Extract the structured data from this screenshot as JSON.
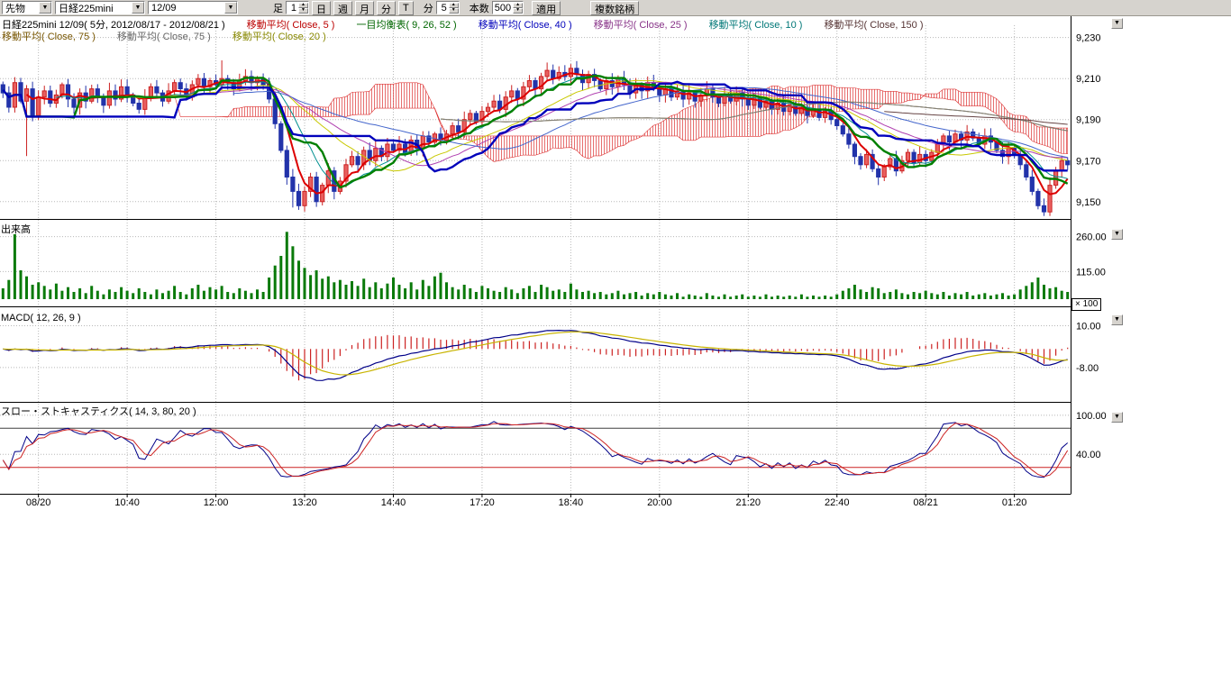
{
  "toolbar": {
    "instrument_type": "先物",
    "instrument": "日経225mini",
    "contract_month": "12/09",
    "bar_label": "足",
    "bar_value": "1",
    "period_buttons": [
      "日",
      "週",
      "月",
      "分",
      "T"
    ],
    "minute_label": "分",
    "minute_value": "5",
    "count_label": "本数",
    "count_value": "500",
    "apply_label": "適用",
    "multi_symbol_label": "複数銘柄"
  },
  "legend": {
    "row1": [
      {
        "text": "日経225mini 12/09( 5分, 2012/08/17 - 2012/08/21 )",
        "color": "#000000"
      },
      {
        "text": "移動平均( Close, 5 )",
        "color": "#bb0000"
      },
      {
        "text": "一目均衡表( 9, 26, 52 )",
        "color": "#006600"
      },
      {
        "text": "移動平均( Close, 40 )",
        "color": "#0000bb"
      },
      {
        "text": "移動平均( Close, 25 )",
        "color": "#883388"
      },
      {
        "text": "移動平均( Close, 10 )",
        "color": "#007777"
      },
      {
        "text": "移動平均( Close, 150 )",
        "color": "#553333"
      }
    ],
    "row2": [
      {
        "text": "移動平均( Close, 75 )",
        "color": "#775500"
      },
      {
        "text": "移動平均( Close, 75 )",
        "color": "#666666"
      },
      {
        "text": "移動平均( Close, 20 )",
        "color": "#888800"
      }
    ]
  },
  "panels": {
    "volume_label": "出来高",
    "macd_label": "MACD( 12, 26, 9 )",
    "stoch_label": "スロー・ストキャスティクス( 14, 3, 80, 20 )",
    "volume_multiplier": "× 100"
  },
  "chart_data": {
    "type": "candlestick",
    "title": "日経225mini 12/09( 5分, 2012/08/17 - 2012/08/21 )",
    "x_tick_labels": [
      "08/20",
      "10:40",
      "12:00",
      "13:20",
      "14:40",
      "17:20",
      "18:40",
      "20:00",
      "21:20",
      "22:40",
      "08/21",
      "01:20"
    ],
    "price_grid": [
      {
        "v": 9230,
        "label": "9,230"
      },
      {
        "v": 9210,
        "label": "9,210"
      },
      {
        "v": 9190,
        "label": "9,190"
      },
      {
        "v": 9170,
        "label": "9,170"
      },
      {
        "v": 9150,
        "label": "9,150"
      }
    ],
    "volume_grid": [
      {
        "v": 260,
        "label": "260.00"
      },
      {
        "v": 115,
        "label": "115.00"
      }
    ],
    "macd_grid": [
      {
        "v": 10,
        "label": "10.00"
      },
      {
        "v": -8,
        "label": "-8.00"
      }
    ],
    "stoch_grid": [
      {
        "v": 100,
        "label": "100.00"
      },
      {
        "v": 40,
        "label": "40.00"
      }
    ],
    "price_range": [
      9142,
      9236
    ],
    "volume_range": [
      0,
      300
    ],
    "macd_range": [
      -22,
      16
    ],
    "stoch_range": [
      -15,
      115
    ],
    "stoch_ref_lines": {
      "upper": 80,
      "lower": 20
    },
    "colors": {
      "up_candle": "#cc2222",
      "down_candle": "#2233aa",
      "volume_bar": "#0a7a0a",
      "macd_line": "#000088",
      "macd_signal": "#c8b400",
      "macd_hist": "#cc2222",
      "stoch_k": "#000088",
      "stoch_d": "#cc2222",
      "tenkan": "#008000",
      "kijun": "#0000bb",
      "cloud": "#dd3333",
      "grid": "#b8b8b8"
    },
    "ma": [
      {
        "period": 5,
        "color": "#dd0000",
        "width": 2
      },
      {
        "period": 10,
        "color": "#008f8f",
        "width": 1
      },
      {
        "period": 20,
        "color": "#c8c800",
        "width": 1
      },
      {
        "period": 25,
        "color": "#b040b0",
        "width": 1
      },
      {
        "period": 40,
        "color": "#4466cc",
        "width": 1
      },
      {
        "period": 75,
        "color": "#886600",
        "width": 1
      },
      {
        "period": 75,
        "color": "#808080",
        "width": 1
      },
      {
        "period": 150,
        "color": "#664444",
        "width": 1
      }
    ],
    "ichimoku": {
      "tenkan": 9,
      "kijun": 26,
      "senkou_b": 52
    },
    "macd_params": {
      "fast": 12,
      "slow": 26,
      "signal": 9
    },
    "stoch_params": {
      "k": 14,
      "slow": 3,
      "upper": 80,
      "lower": 20
    },
    "closes": [
      9203,
      9196,
      9208,
      9199,
      9205,
      9192,
      9201,
      9204,
      9198,
      9202,
      9207,
      9200,
      9196,
      9203,
      9199,
      9205,
      9201,
      9197,
      9204,
      9200,
      9206,
      9202,
      9198,
      9195,
      9201,
      9206,
      9203,
      9199,
      9204,
      9208,
      9205,
      9201,
      9207,
      9210,
      9206,
      9209,
      9207,
      9210,
      9208,
      9205,
      9209,
      9211,
      9208,
      9210,
      9207,
      9200,
      9188,
      9175,
      9162,
      9155,
      9148,
      9155,
      9162,
      9150,
      9158,
      9165,
      9155,
      9160,
      9168,
      9172,
      9168,
      9175,
      9170,
      9176,
      9172,
      9178,
      9175,
      9178,
      9174,
      9180,
      9176,
      9182,
      9179,
      9183,
      9180,
      9183,
      9187,
      9184,
      9190,
      9193,
      9189,
      9194,
      9196,
      9199,
      9195,
      9201,
      9204,
      9200,
      9206,
      9209,
      9205,
      9211,
      9214,
      9210,
      9213,
      9211,
      9215,
      9212,
      9208,
      9212,
      9209,
      9205,
      9209,
      9206,
      9210,
      9207,
      9203,
      9207,
      9204,
      9208,
      9205,
      9202,
      9205,
      9201,
      9204,
      9200,
      9203,
      9199,
      9202,
      9205,
      9201,
      9198,
      9202,
      9199,
      9203,
      9200,
      9197,
      9200,
      9196,
      9199,
      9195,
      9198,
      9194,
      9197,
      9193,
      9196,
      9192,
      9195,
      9191,
      9194,
      9190,
      9187,
      9183,
      9178,
      9172,
      9168,
      9173,
      9166,
      9162,
      9167,
      9171,
      9165,
      9170,
      9174,
      9169,
      9173,
      9170,
      9174,
      9178,
      9182,
      9179,
      9183,
      9180,
      9184,
      9181,
      9178,
      9182,
      9179,
      9175,
      9172,
      9176,
      9173,
      9168,
      9162,
      9155,
      9148,
      9145,
      9158,
      9165,
      9170,
      9168
    ],
    "volumes": [
      45,
      80,
      270,
      120,
      95,
      60,
      70,
      55,
      40,
      65,
      35,
      50,
      30,
      45,
      25,
      55,
      35,
      20,
      40,
      30,
      50,
      35,
      25,
      45,
      30,
      20,
      40,
      25,
      35,
      55,
      30,
      20,
      45,
      60,
      35,
      50,
      40,
      55,
      30,
      25,
      45,
      35,
      25,
      40,
      30,
      90,
      140,
      180,
      280,
      220,
      160,
      130,
      100,
      120,
      85,
      95,
      70,
      80,
      60,
      75,
      55,
      85,
      50,
      70,
      45,
      65,
      90,
      60,
      45,
      70,
      40,
      80,
      55,
      95,
      110,
      70,
      50,
      40,
      60,
      45,
      30,
      55,
      45,
      35,
      30,
      50,
      40,
      25,
      45,
      55,
      30,
      60,
      50,
      35,
      40,
      30,
      65,
      40,
      30,
      35,
      25,
      30,
      20,
      25,
      35,
      20,
      25,
      30,
      15,
      25,
      20,
      30,
      20,
      15,
      25,
      10,
      20,
      15,
      10,
      25,
      15,
      10,
      20,
      10,
      15,
      20,
      10,
      15,
      10,
      20,
      10,
      15,
      10,
      15,
      10,
      20,
      10,
      15,
      10,
      15,
      10,
      20,
      35,
      45,
      60,
      40,
      30,
      50,
      45,
      25,
      30,
      40,
      25,
      20,
      30,
      25,
      35,
      25,
      20,
      30,
      15,
      25,
      20,
      30,
      15,
      20,
      25,
      15,
      20,
      25,
      15,
      20,
      40,
      55,
      70,
      90,
      60,
      45,
      50,
      35,
      30
    ]
  }
}
